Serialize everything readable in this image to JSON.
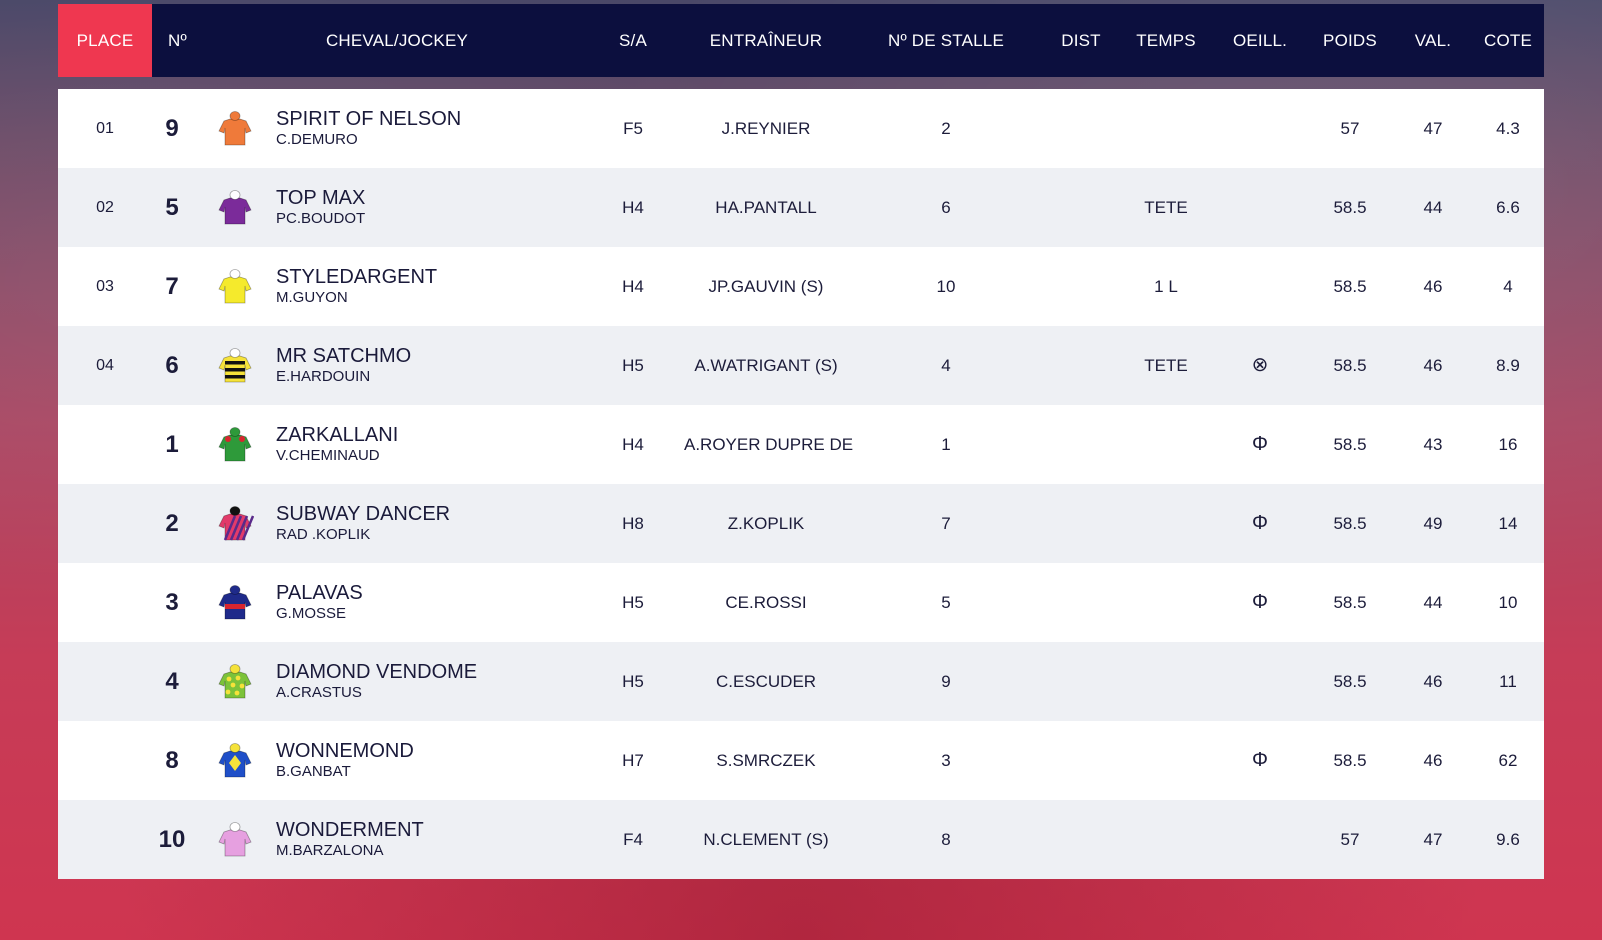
{
  "columns": {
    "place": "PLACE",
    "num": "Nº",
    "horse_jockey": "CHEVAL/JOCKEY",
    "sex_age": "S/A",
    "trainer": "ENTRAÎNEUR",
    "stall": "Nº DE STALLE",
    "dist": "DIST",
    "time": "TEMPS",
    "blinkers": "OEILL.",
    "weight": "POIDS",
    "value": "VAL.",
    "odds": "COTE"
  },
  "runners": [
    {
      "place": "01",
      "num": "9",
      "horse": "SPIRIT OF NELSON",
      "jockey": "C.DEMURO",
      "sex_age": "F5",
      "trainer": "J.REYNIER",
      "stall": "2",
      "dist": "",
      "time": "",
      "blinkers": "",
      "weight": "57",
      "value": "47",
      "odds": "4.3",
      "silk_colors": [
        "#ef7a3a",
        "#ef7a3a",
        "#ef7a3a"
      ],
      "silk_pattern": "plain"
    },
    {
      "place": "02",
      "num": "5",
      "horse": "TOP MAX",
      "jockey": "PC.BOUDOT",
      "sex_age": "H4",
      "trainer": "HA.PANTALL",
      "stall": "6",
      "dist": "",
      "time": "TETE",
      "blinkers": "",
      "weight": "58.5",
      "value": "44",
      "odds": "6.6",
      "silk_colors": [
        "#7b2b9a",
        "#7b2b9a",
        "#ffffff"
      ],
      "silk_pattern": "plain"
    },
    {
      "place": "03",
      "num": "7",
      "horse": "STYLEDARGENT",
      "jockey": "M.GUYON",
      "sex_age": "H4",
      "trainer": "JP.GAUVIN (S)",
      "stall": "10",
      "dist": "",
      "time": "1 L",
      "blinkers": "",
      "weight": "58.5",
      "value": "46",
      "odds": "4",
      "silk_colors": [
        "#f5ea2c",
        "#f5ea2c",
        "#ffffff"
      ],
      "silk_pattern": "plain"
    },
    {
      "place": "04",
      "num": "6",
      "horse": "MR SATCHMO",
      "jockey": "E.HARDOUIN",
      "sex_age": "H5",
      "trainer": "A.WATRIGANT (S)",
      "stall": "4",
      "dist": "",
      "time": "TETE",
      "blinkers": "⊗",
      "weight": "58.5",
      "value": "46",
      "odds": "8.9",
      "silk_colors": [
        "#f5e23a",
        "#111111",
        "#ffffff"
      ],
      "silk_pattern": "hoops"
    },
    {
      "place": "",
      "num": "1",
      "horse": "ZARKALLANI",
      "jockey": "V.CHEMINAUD",
      "sex_age": "H4",
      "trainer": "A.ROYER DUPRE DE",
      "stall": "1",
      "dist": "",
      "time": "",
      "blinkers": "Φ",
      "weight": "58.5",
      "value": "43",
      "odds": "16",
      "silk_colors": [
        "#2e9a3a",
        "#d8252f",
        "#2e9a3a"
      ],
      "silk_pattern": "epaulets"
    },
    {
      "place": "",
      "num": "2",
      "horse": "SUBWAY DANCER",
      "jockey": "RAD .KOPLIK",
      "sex_age": "H8",
      "trainer": "Z.KOPLIK",
      "stall": "7",
      "dist": "",
      "time": "",
      "blinkers": "Φ",
      "weight": "58.5",
      "value": "49",
      "odds": "14",
      "silk_colors": [
        "#e23a6a",
        "#5a2a8a",
        "#111111"
      ],
      "silk_pattern": "diagonal"
    },
    {
      "place": "",
      "num": "3",
      "horse": "PALAVAS",
      "jockey": "G.MOSSE",
      "sex_age": "H5",
      "trainer": "CE.ROSSI",
      "stall": "5",
      "dist": "",
      "time": "",
      "blinkers": "Φ",
      "weight": "58.5",
      "value": "44",
      "odds": "10",
      "silk_colors": [
        "#1f2a8a",
        "#d8252f",
        "#1f2a8a"
      ],
      "silk_pattern": "band"
    },
    {
      "place": "",
      "num": "4",
      "horse": "DIAMOND VENDOME",
      "jockey": "A.CRASTUS",
      "sex_age": "H5",
      "trainer": "C.ESCUDER",
      "stall": "9",
      "dist": "",
      "time": "",
      "blinkers": "",
      "weight": "58.5",
      "value": "46",
      "odds": "11",
      "silk_colors": [
        "#7cc23a",
        "#f5e23a",
        "#f5e23a"
      ],
      "silk_pattern": "spots"
    },
    {
      "place": "",
      "num": "8",
      "horse": "WONNEMOND",
      "jockey": "B.GANBAT",
      "sex_age": "H7",
      "trainer": "S.SMRCZEK",
      "stall": "3",
      "dist": "",
      "time": "",
      "blinkers": "Φ",
      "weight": "58.5",
      "value": "46",
      "odds": "62",
      "silk_colors": [
        "#1f4fc8",
        "#f5e23a",
        "#f5e23a"
      ],
      "silk_pattern": "diamond"
    },
    {
      "place": "",
      "num": "10",
      "horse": "WONDERMENT",
      "jockey": "M.BARZALONA",
      "sex_age": "F4",
      "trainer": "N.CLEMENT (S)",
      "stall": "8",
      "dist": "",
      "time": "",
      "blinkers": "",
      "weight": "57",
      "value": "47",
      "odds": "9.6",
      "silk_colors": [
        "#e6a0e0",
        "#e6a0e0",
        "#ffffff"
      ],
      "silk_pattern": "plain"
    }
  ],
  "colors": {
    "header_bg": "#0c0f3e",
    "place_header_bg": "#ef3750",
    "row_alt": "#eef0f4",
    "row": "#ffffff"
  }
}
